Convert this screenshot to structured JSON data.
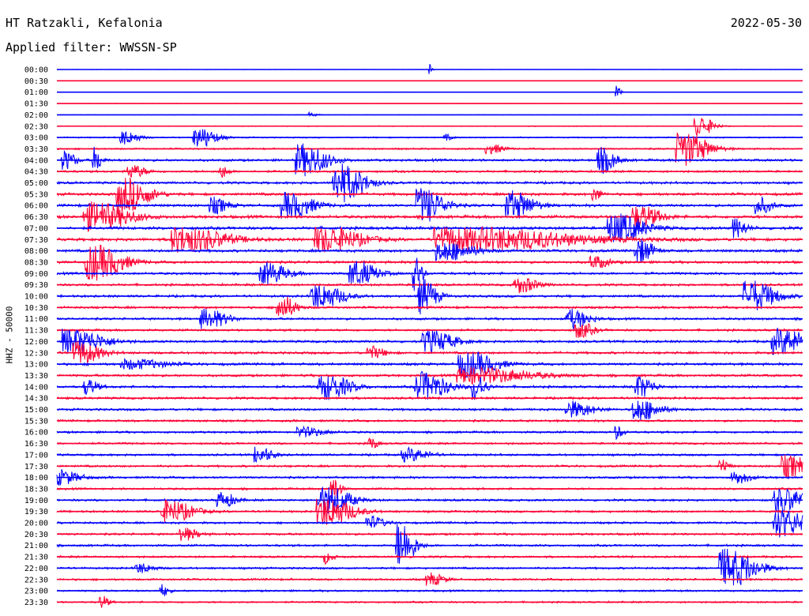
{
  "header": {
    "station": "HT Ratzakli, Kefalonia",
    "date": "2022-05-30",
    "filter": "Applied filter: WWSSN-SP"
  },
  "channel_label": "HHZ - 50000",
  "colors": {
    "even_row": "#0000ff",
    "odd_row": "#ff0033",
    "text": "#000000"
  },
  "chart_data": {
    "type": "line",
    "title": "HT Ratzakli, Kefalonia",
    "ylabel": "HHZ - 50000",
    "row_labels": [
      "00:00",
      "00:30",
      "01:00",
      "01:30",
      "02:00",
      "02:30",
      "03:00",
      "03:30",
      "04:00",
      "04:30",
      "05:00",
      "05:30",
      "06:00",
      "06:30",
      "07:00",
      "07:30",
      "08:00",
      "08:30",
      "09:00",
      "09:30",
      "10:00",
      "10:30",
      "11:00",
      "11:30",
      "12:00",
      "12:30",
      "13:00",
      "13:30",
      "14:00",
      "14:30",
      "15:00",
      "15:30",
      "16:00",
      "16:30",
      "17:00",
      "17:30",
      "18:00",
      "18:30",
      "19:00",
      "19:30",
      "20:00",
      "20:30",
      "21:00",
      "21:30",
      "22:00",
      "22:30",
      "23:00",
      "23:30"
    ],
    "row_minutes": 30,
    "noise_level": [
      0.2,
      0.2,
      0.3,
      0.3,
      0.4,
      0.6,
      1.0,
      1.2,
      1.8,
      1.6,
      1.8,
      2.0,
      2.0,
      2.2,
      2.2,
      2.2,
      2.0,
      1.9,
      1.8,
      1.7,
      1.8,
      1.7,
      1.7,
      1.6,
      1.8,
      1.8,
      1.9,
      1.8,
      1.8,
      1.7,
      1.7,
      1.6,
      1.6,
      1.5,
      1.6,
      1.6,
      1.6,
      1.5,
      1.6,
      1.6,
      1.6,
      1.6,
      1.6,
      1.5,
      1.5,
      1.5,
      1.4,
      1.3
    ],
    "events": [
      {
        "row": 0,
        "t": 0.5,
        "amp": 8,
        "dur": 0.004
      },
      {
        "row": 2,
        "t": 0.75,
        "amp": 8,
        "dur": 0.006
      },
      {
        "row": 4,
        "t": 0.34,
        "amp": 3,
        "dur": 0.01
      },
      {
        "row": 5,
        "t": 0.86,
        "amp": 14,
        "dur": 0.02
      },
      {
        "row": 6,
        "t": 0.09,
        "amp": 9,
        "dur": 0.02
      },
      {
        "row": 6,
        "t": 0.19,
        "amp": 13,
        "dur": 0.025
      },
      {
        "row": 6,
        "t": 0.52,
        "amp": 4,
        "dur": 0.01
      },
      {
        "row": 7,
        "t": 0.84,
        "amp": 22,
        "dur": 0.035
      },
      {
        "row": 7,
        "t": 0.58,
        "amp": 6,
        "dur": 0.02
      },
      {
        "row": 8,
        "t": 0.01,
        "amp": 12,
        "dur": 0.015
      },
      {
        "row": 8,
        "t": 0.05,
        "amp": 16,
        "dur": 0.01
      },
      {
        "row": 8,
        "t": 0.33,
        "amp": 20,
        "dur": 0.035
      },
      {
        "row": 8,
        "t": 0.73,
        "amp": 16,
        "dur": 0.02
      },
      {
        "row": 9,
        "t": 0.1,
        "amp": 8,
        "dur": 0.02
      },
      {
        "row": 9,
        "t": 0.22,
        "amp": 8,
        "dur": 0.01
      },
      {
        "row": 10,
        "t": 0.38,
        "amp": 24,
        "dur": 0.035
      },
      {
        "row": 11,
        "t": 0.09,
        "amp": 22,
        "dur": 0.035
      },
      {
        "row": 11,
        "t": 0.72,
        "amp": 8,
        "dur": 0.01
      },
      {
        "row": 12,
        "t": 0.21,
        "amp": 10,
        "dur": 0.02
      },
      {
        "row": 12,
        "t": 0.31,
        "amp": 16,
        "dur": 0.035
      },
      {
        "row": 12,
        "t": 0.49,
        "amp": 22,
        "dur": 0.03
      },
      {
        "row": 12,
        "t": 0.61,
        "amp": 18,
        "dur": 0.03
      },
      {
        "row": 12,
        "t": 0.94,
        "amp": 10,
        "dur": 0.02
      },
      {
        "row": 13,
        "t": 0.05,
        "amp": 18,
        "dur": 0.05
      },
      {
        "row": 13,
        "t": 0.78,
        "amp": 14,
        "dur": 0.03
      },
      {
        "row": 14,
        "t": 0.75,
        "amp": 18,
        "dur": 0.04
      },
      {
        "row": 14,
        "t": 0.91,
        "amp": 12,
        "dur": 0.015
      },
      {
        "row": 15,
        "t": 0.17,
        "amp": 16,
        "dur": 0.06
      },
      {
        "row": 15,
        "t": 0.36,
        "amp": 16,
        "dur": 0.05
      },
      {
        "row": 15,
        "t": 0.55,
        "amp": 15,
        "dur": 0.15
      },
      {
        "row": 16,
        "t": 0.52,
        "amp": 12,
        "dur": 0.04
      },
      {
        "row": 16,
        "t": 0.78,
        "amp": 16,
        "dur": 0.02
      },
      {
        "row": 17,
        "t": 0.05,
        "amp": 22,
        "dur": 0.04
      },
      {
        "row": 17,
        "t": 0.72,
        "amp": 8,
        "dur": 0.02
      },
      {
        "row": 18,
        "t": 0.28,
        "amp": 14,
        "dur": 0.03
      },
      {
        "row": 18,
        "t": 0.4,
        "amp": 16,
        "dur": 0.03
      },
      {
        "row": 18,
        "t": 0.48,
        "amp": 22,
        "dur": 0.01
      },
      {
        "row": 19,
        "t": 0.62,
        "amp": 10,
        "dur": 0.025
      },
      {
        "row": 20,
        "t": 0.35,
        "amp": 16,
        "dur": 0.035
      },
      {
        "row": 20,
        "t": 0.49,
        "amp": 22,
        "dur": 0.02
      },
      {
        "row": 20,
        "t": 0.93,
        "amp": 20,
        "dur": 0.035
      },
      {
        "row": 21,
        "t": 0.3,
        "amp": 16,
        "dur": 0.02
      },
      {
        "row": 22,
        "t": 0.2,
        "amp": 12,
        "dur": 0.03
      },
      {
        "row": 22,
        "t": 0.69,
        "amp": 12,
        "dur": 0.025
      },
      {
        "row": 23,
        "t": 0.7,
        "amp": 10,
        "dur": 0.02
      },
      {
        "row": 24,
        "t": 0.02,
        "amp": 16,
        "dur": 0.045
      },
      {
        "row": 24,
        "t": 0.5,
        "amp": 14,
        "dur": 0.035
      },
      {
        "row": 24,
        "t": 0.97,
        "amp": 16,
        "dur": 0.04
      },
      {
        "row": 25,
        "t": 0.03,
        "amp": 14,
        "dur": 0.03
      },
      {
        "row": 25,
        "t": 0.42,
        "amp": 8,
        "dur": 0.02
      },
      {
        "row": 26,
        "t": 0.1,
        "amp": 6,
        "dur": 0.05
      },
      {
        "row": 26,
        "t": 0.55,
        "amp": 16,
        "dur": 0.04
      },
      {
        "row": 27,
        "t": 0.56,
        "amp": 10,
        "dur": 0.08
      },
      {
        "row": 28,
        "t": 0.04,
        "amp": 10,
        "dur": 0.015
      },
      {
        "row": 28,
        "t": 0.36,
        "amp": 16,
        "dur": 0.035
      },
      {
        "row": 28,
        "t": 0.49,
        "amp": 18,
        "dur": 0.035
      },
      {
        "row": 28,
        "t": 0.56,
        "amp": 18,
        "dur": 0.015
      },
      {
        "row": 28,
        "t": 0.78,
        "amp": 14,
        "dur": 0.02
      },
      {
        "row": 30,
        "t": 0.69,
        "amp": 10,
        "dur": 0.03
      },
      {
        "row": 30,
        "t": 0.78,
        "amp": 14,
        "dur": 0.03
      },
      {
        "row": 32,
        "t": 0.33,
        "amp": 6,
        "dur": 0.03
      },
      {
        "row": 32,
        "t": 0.75,
        "amp": 8,
        "dur": 0.01
      },
      {
        "row": 33,
        "t": 0.42,
        "amp": 8,
        "dur": 0.01
      },
      {
        "row": 34,
        "t": 0.27,
        "amp": 10,
        "dur": 0.02
      },
      {
        "row": 34,
        "t": 0.47,
        "amp": 8,
        "dur": 0.03
      },
      {
        "row": 35,
        "t": 0.98,
        "amp": 14,
        "dur": 0.03
      },
      {
        "row": 35,
        "t": 0.89,
        "amp": 10,
        "dur": 0.01
      },
      {
        "row": 36,
        "t": 0.0,
        "amp": 10,
        "dur": 0.03
      },
      {
        "row": 36,
        "t": 0.91,
        "amp": 8,
        "dur": 0.02
      },
      {
        "row": 37,
        "t": 0.37,
        "amp": 18,
        "dur": 0.01
      },
      {
        "row": 38,
        "t": 0.36,
        "amp": 18,
        "dur": 0.035
      },
      {
        "row": 38,
        "t": 0.22,
        "amp": 10,
        "dur": 0.02
      },
      {
        "row": 38,
        "t": 0.97,
        "amp": 16,
        "dur": 0.035
      },
      {
        "row": 39,
        "t": 0.15,
        "amp": 14,
        "dur": 0.035
      },
      {
        "row": 39,
        "t": 0.36,
        "amp": 18,
        "dur": 0.04
      },
      {
        "row": 40,
        "t": 0.97,
        "amp": 18,
        "dur": 0.035
      },
      {
        "row": 40,
        "t": 0.42,
        "amp": 8,
        "dur": 0.02
      },
      {
        "row": 41,
        "t": 0.17,
        "amp": 8,
        "dur": 0.02
      },
      {
        "row": 42,
        "t": 0.46,
        "amp": 30,
        "dur": 0.02
      },
      {
        "row": 43,
        "t": 0.36,
        "amp": 8,
        "dur": 0.01
      },
      {
        "row": 44,
        "t": 0.9,
        "amp": 24,
        "dur": 0.04
      },
      {
        "row": 44,
        "t": 0.11,
        "amp": 6,
        "dur": 0.02
      },
      {
        "row": 45,
        "t": 0.5,
        "amp": 8,
        "dur": 0.02
      },
      {
        "row": 46,
        "t": 0.14,
        "amp": 8,
        "dur": 0.01
      },
      {
        "row": 47,
        "t": 0.06,
        "amp": 8,
        "dur": 0.01
      }
    ]
  }
}
